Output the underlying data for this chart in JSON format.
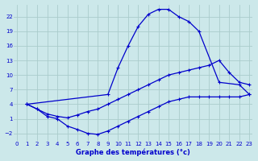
{
  "title": "Graphe des températures (°c)",
  "bg_color": "#cce8ea",
  "grid_color": "#aacccc",
  "line_color": "#0000cc",
  "xlim": [
    -0.3,
    23.3
  ],
  "ylim": [
    -3.5,
    24.5
  ],
  "xticks": [
    0,
    1,
    2,
    3,
    4,
    5,
    6,
    7,
    8,
    9,
    10,
    11,
    12,
    13,
    14,
    15,
    16,
    17,
    18,
    19,
    20,
    21,
    22,
    23
  ],
  "yticks": [
    -2,
    1,
    4,
    7,
    10,
    13,
    16,
    19,
    22
  ],
  "curve_min_x": [
    1,
    2,
    3,
    4,
    5,
    6,
    7,
    8,
    9,
    10,
    11,
    12,
    13,
    14,
    15,
    16,
    17,
    18,
    19,
    20,
    21,
    22,
    23
  ],
  "curve_min_y": [
    4,
    3,
    1.5,
    1,
    -0.5,
    -1.2,
    -2,
    -2.2,
    -1.5,
    -0.5,
    0.5,
    1.5,
    2.5,
    3.5,
    4.5,
    5,
    5.5,
    5.5,
    5.5,
    5.5,
    5.5,
    5.5,
    6
  ],
  "curve_max_x": [
    1,
    9,
    10,
    11,
    12,
    13,
    14,
    15,
    16,
    17,
    18,
    20,
    22,
    23
  ],
  "curve_max_y": [
    4,
    6,
    11.5,
    16,
    20,
    22.5,
    23.5,
    23.5,
    22,
    21,
    19,
    8.5,
    8,
    6
  ],
  "curve_mean_x": [
    1,
    2,
    3,
    4,
    5,
    6,
    7,
    8,
    9,
    10,
    11,
    12,
    13,
    14,
    15,
    16,
    17,
    18,
    19,
    20,
    21,
    22,
    23
  ],
  "curve_mean_y": [
    4,
    3,
    2,
    1.5,
    1.2,
    1.8,
    2.5,
    3,
    4,
    5,
    6,
    7,
    8,
    9,
    10,
    10.5,
    11,
    11.5,
    12,
    13,
    10.5,
    8.5,
    8
  ]
}
